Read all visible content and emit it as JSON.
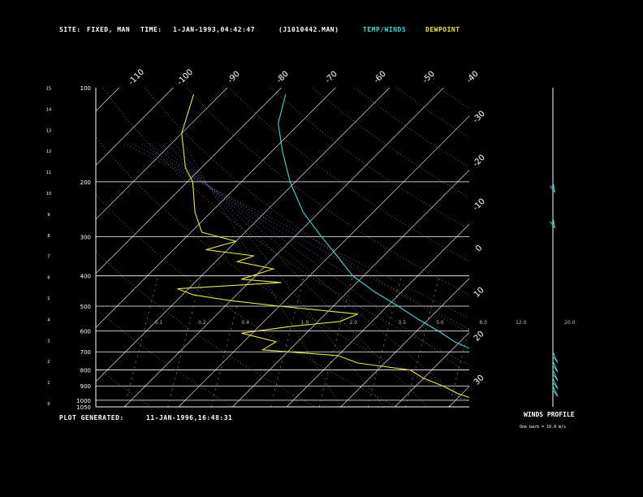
{
  "header": {
    "site_label": "SITE:",
    "site_value": "FIXED, MAN",
    "time_label": "TIME:",
    "time_value": "1-JAN-1993,04:42:47",
    "file_value": "(J1010442.MAN)",
    "legend_temp": "TEMP/WINDS",
    "legend_dew": "DEWPOINT"
  },
  "footer": {
    "generated_label": "PLOT GENERATED:",
    "generated_value": "11-JAN-1996,16:48:31"
  },
  "winds": {
    "title": "WINDS PROFILE",
    "note": "One barb = 10.0 m/s"
  },
  "colors": {
    "temp": "#38d8d8",
    "dewpoint": "#e8e838",
    "isobar": "#ffffff",
    "isotherm": "#ffffff",
    "mixing_ratio": "#4a8cff",
    "dry_adiabat": "#e07a3a",
    "moist_adiabat": "#9090ff",
    "axis_text": "#ffffff",
    "wind": "#38d8d8"
  },
  "chart_data": {
    "type": "line",
    "subtype": "skew-T log-P sounding",
    "pressure_unit": "hPa",
    "pressure_levels": [
      100,
      200,
      300,
      400,
      500,
      600,
      700,
      800,
      900,
      1000,
      1050
    ],
    "height_km_ticks": [
      0,
      1,
      2,
      3,
      4,
      5,
      6,
      7,
      8,
      9,
      10,
      11,
      12,
      13,
      14,
      15
    ],
    "isotherm_top_labels": [
      "-110",
      "-100",
      "-90",
      "-80",
      "-70",
      "-60",
      "-50",
      "-40"
    ],
    "isotherm_right_labels": [
      "-30",
      "-20",
      "-10",
      "0",
      "10",
      "20",
      "30"
    ],
    "mixing_ratio_labels": [
      "0.1",
      "0.2",
      "0.4",
      "1.0",
      "2.0",
      "3.5",
      "5.0",
      "8.0",
      "12.0",
      "20.0"
    ],
    "series": [
      {
        "name": "TEMP/WINDS",
        "points": [
          {
            "p": 105,
            "t": -88
          },
          {
            "p": 130,
            "t": -84
          },
          {
            "p": 160,
            "t": -78
          },
          {
            "p": 200,
            "t": -71
          },
          {
            "p": 250,
            "t": -63
          },
          {
            "p": 300,
            "t": -55
          },
          {
            "p": 350,
            "t": -48
          },
          {
            "p": 400,
            "t": -42
          },
          {
            "p": 450,
            "t": -35
          },
          {
            "p": 500,
            "t": -28
          },
          {
            "p": 550,
            "t": -22
          },
          {
            "p": 600,
            "t": -16
          },
          {
            "p": 650,
            "t": -11
          },
          {
            "p": 700,
            "t": -5
          },
          {
            "p": 750,
            "t": -1
          },
          {
            "p": 800,
            "t": 3
          },
          {
            "p": 850,
            "t": 6
          },
          {
            "p": 900,
            "t": 9
          },
          {
            "p": 950,
            "t": 11
          },
          {
            "p": 1000,
            "t": 14
          },
          {
            "p": 1015,
            "t": 18
          }
        ]
      },
      {
        "name": "DEWPOINT",
        "points": [
          {
            "p": 105,
            "t": -105
          },
          {
            "p": 140,
            "t": -100
          },
          {
            "p": 180,
            "t": -93
          },
          {
            "p": 200,
            "t": -89
          },
          {
            "p": 250,
            "t": -83
          },
          {
            "p": 290,
            "t": -78
          },
          {
            "p": 310,
            "t": -70
          },
          {
            "p": 330,
            "t": -74
          },
          {
            "p": 345,
            "t": -64
          },
          {
            "p": 360,
            "t": -66
          },
          {
            "p": 380,
            "t": -58
          },
          {
            "p": 410,
            "t": -62
          },
          {
            "p": 420,
            "t": -54
          },
          {
            "p": 440,
            "t": -72
          },
          {
            "p": 460,
            "t": -68
          },
          {
            "p": 480,
            "t": -60
          },
          {
            "p": 500,
            "t": -50
          },
          {
            "p": 530,
            "t": -34
          },
          {
            "p": 560,
            "t": -36
          },
          {
            "p": 580,
            "t": -44
          },
          {
            "p": 610,
            "t": -52
          },
          {
            "p": 650,
            "t": -44
          },
          {
            "p": 690,
            "t": -45
          },
          {
            "p": 720,
            "t": -30
          },
          {
            "p": 760,
            "t": -25
          },
          {
            "p": 800,
            "t": -14
          },
          {
            "p": 850,
            "t": -10
          },
          {
            "p": 900,
            "t": -5
          },
          {
            "p": 950,
            "t": -1
          },
          {
            "p": 1000,
            "t": 4
          },
          {
            "p": 1015,
            "t": 9
          }
        ]
      }
    ],
    "winds_profile": [
      {
        "p": 200,
        "dir": 300,
        "speed": 30
      },
      {
        "p": 260,
        "dir": 240,
        "speed": 40
      },
      {
        "p": 700,
        "dir": 280,
        "speed": 45
      },
      {
        "p": 750,
        "dir": 275,
        "speed": 45
      },
      {
        "p": 800,
        "dir": 270,
        "speed": 40
      },
      {
        "p": 850,
        "dir": 270,
        "speed": 35
      },
      {
        "p": 900,
        "dir": 265,
        "speed": 30
      }
    ]
  }
}
